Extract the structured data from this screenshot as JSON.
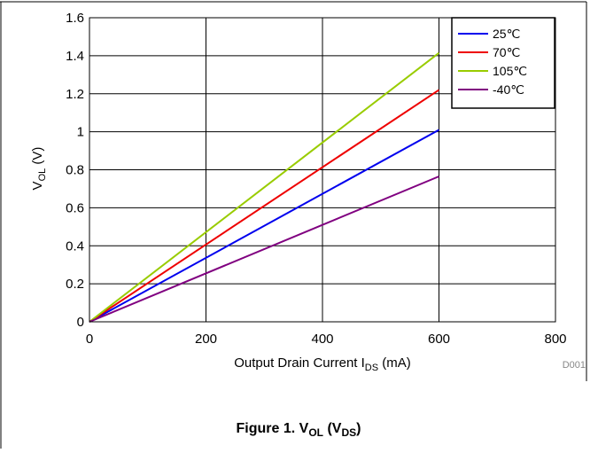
{
  "figure": {
    "code": "D001",
    "caption_prefix": "Figure 1. V",
    "caption_sub1": "OL",
    "caption_mid": " (V",
    "caption_sub2": "DS",
    "caption_suffix": ")"
  },
  "chart_data": {
    "type": "line",
    "title": "",
    "xlabel_main": "Output Drain Current I",
    "xlabel_sub": "DS",
    "xlabel_unit": " (mA)",
    "ylabel_main": "V",
    "ylabel_sub": "OL",
    "ylabel_unit": " (V)",
    "xlim": [
      0,
      800
    ],
    "ylim": [
      0,
      1.6
    ],
    "x_ticks": [
      "0",
      "200",
      "400",
      "600",
      "800"
    ],
    "y_ticks": [
      "0",
      "0.2",
      "0.4",
      "0.6",
      "0.8",
      "1",
      "1.2",
      "1.4",
      "1.6"
    ],
    "grid": true,
    "legend_position": "top-right",
    "series": [
      {
        "name": "25℃",
        "color": "#0000ee",
        "x": [
          0,
          600
        ],
        "y": [
          0,
          1.01
        ]
      },
      {
        "name": "70℃",
        "color": "#ee0000",
        "x": [
          0,
          600
        ],
        "y": [
          0,
          1.22
        ]
      },
      {
        "name": "105℃",
        "color": "#99cc00",
        "x": [
          0,
          600
        ],
        "y": [
          0,
          1.415
        ]
      },
      {
        "name": "-40℃",
        "color": "#800080",
        "x": [
          0,
          600
        ],
        "y": [
          0,
          0.765
        ]
      }
    ]
  }
}
